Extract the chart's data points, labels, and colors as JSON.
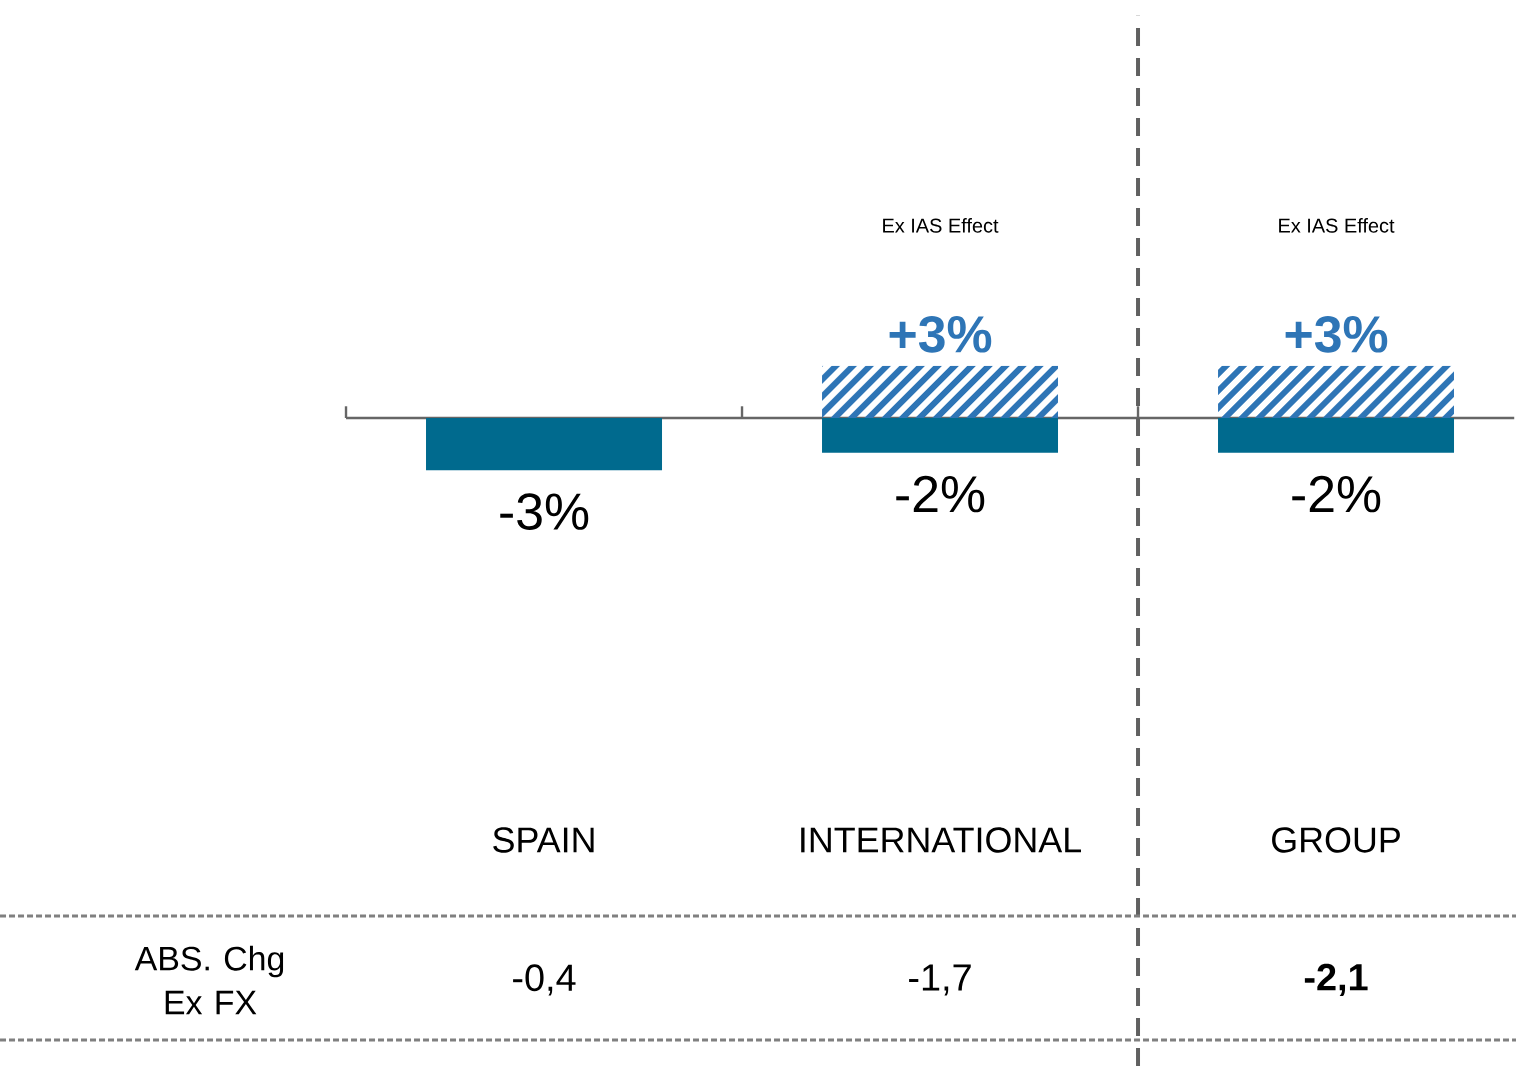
{
  "chart_data": {
    "type": "bar",
    "categories": [
      "SPAIN",
      "INTERNATIONAL",
      "GROUP"
    ],
    "stacked": true,
    "series": [
      {
        "color": "#006a8e",
        "values": [
          -3,
          -2,
          -2
        ],
        "value_labels": [
          "-3%",
          "-2%",
          "-2%"
        ]
      },
      {
        "name": "Ex IAS Effect",
        "color": "#2e75b6",
        "values": [
          null,
          3,
          3
        ],
        "value_labels": [
          null,
          "+3%",
          "+3%"
        ]
      }
    ],
    "annotations": [
      "ABS. Chg Ex FX",
      "-0,4",
      "-1,7",
      "**-2,1**"
    ]
  }
}
